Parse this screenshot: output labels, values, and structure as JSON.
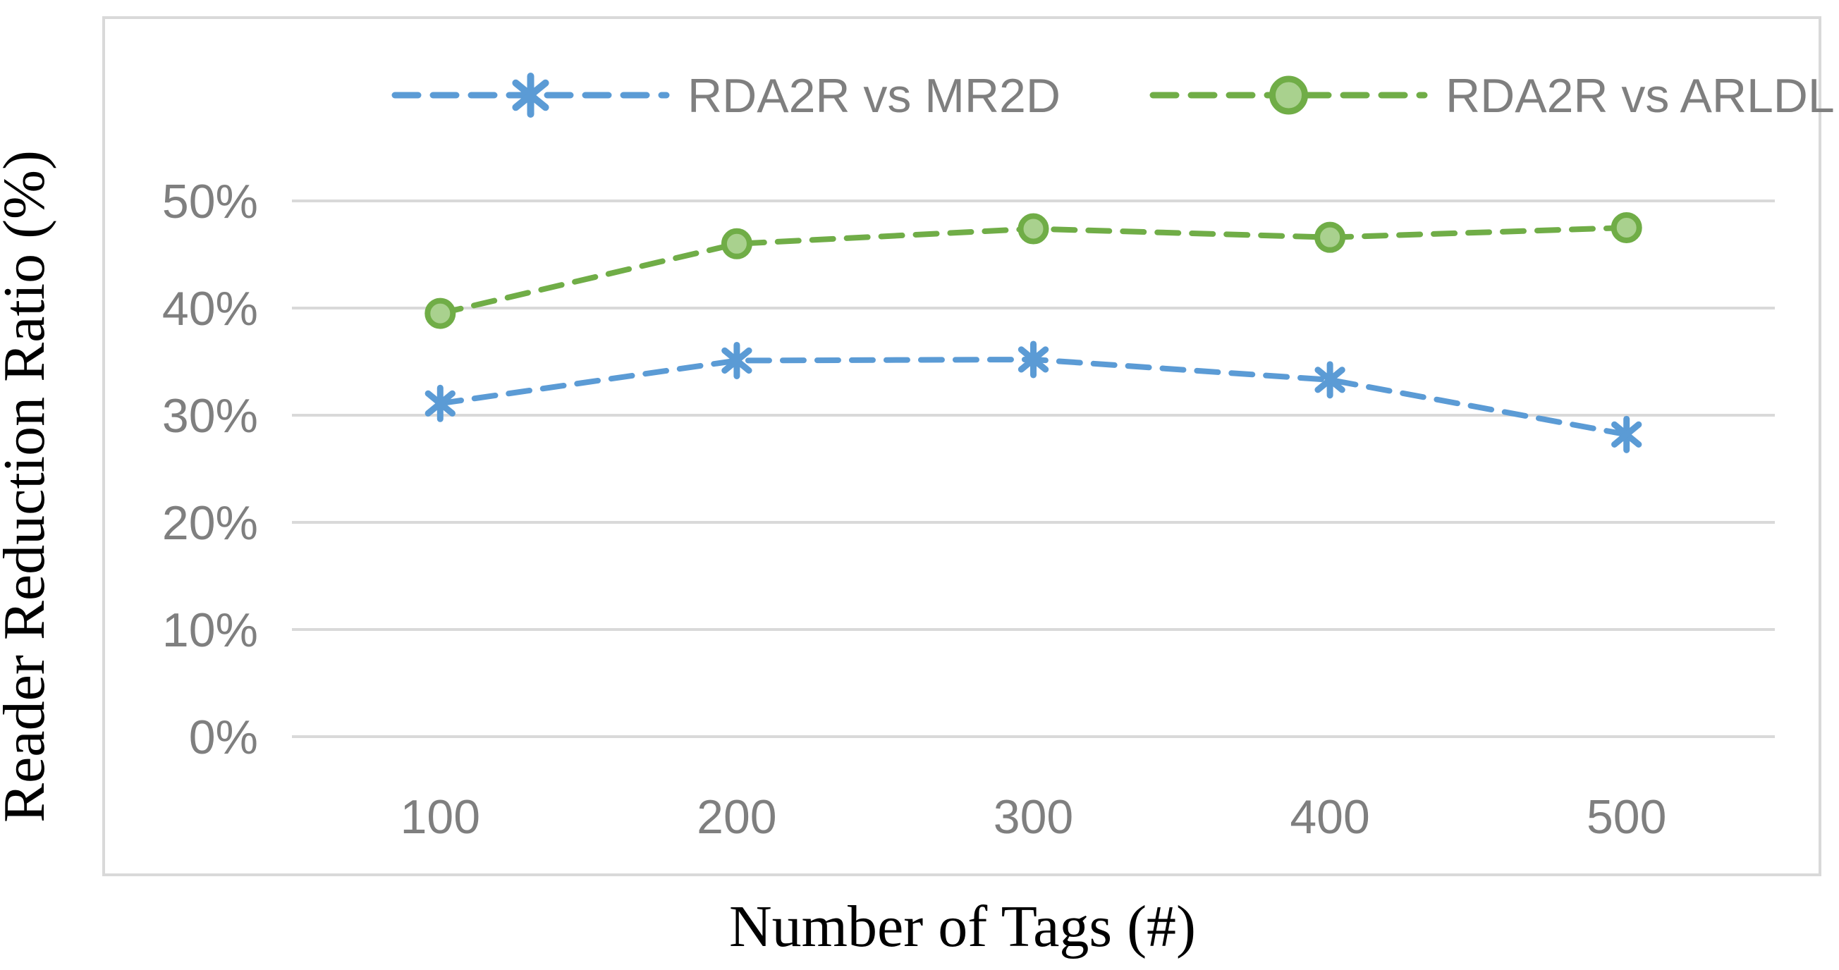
{
  "figure": {
    "y_axis_title": "Reader Reduction Ratio (%)",
    "x_axis_title": "Number of Tags (#)"
  },
  "legend": {
    "position": "top",
    "items": [
      {
        "label": "RDA2R vs MR2D",
        "marker": "asterisk",
        "color": "#5B9BD5"
      },
      {
        "label": "RDA2R vs ARLDL",
        "marker": "circle",
        "color": "#70AD47",
        "marker_fill": "#A9D18E"
      }
    ]
  },
  "axes": {
    "y_tick_labels": [
      "0%",
      "10%",
      "20%",
      "30%",
      "40%",
      "50%"
    ],
    "y_tick_values": [
      0,
      10,
      20,
      30,
      40,
      50
    ],
    "x_tick_labels": [
      "100",
      "200",
      "300",
      "400",
      "500"
    ]
  },
  "colors": {
    "series_blue": "#5B9BD5",
    "series_green": "#70AD47",
    "green_marker_fill": "#A9D18E",
    "gridline": "#D9D9D9",
    "chart_border": "#D9D9D9",
    "tick_text": "#7F7F7F",
    "legend_text": "#7F7F7F",
    "axis_title_text": "#000000",
    "background": "#FFFFFF"
  },
  "chart_data": {
    "type": "line",
    "title": "",
    "xlabel": "Number of Tags (#)",
    "ylabel": "Reader Reduction Ratio (%)",
    "categories": [
      100,
      200,
      300,
      400,
      500
    ],
    "series": [
      {
        "name": "RDA2R vs MR2D",
        "values": [
          31.1,
          35.1,
          35.2,
          33.3,
          28.2
        ],
        "color": "#5B9BD5",
        "marker": "asterisk",
        "line_style": "dashed"
      },
      {
        "name": "RDA2R vs ARLDL",
        "values": [
          39.5,
          46.0,
          47.4,
          46.6,
          47.5
        ],
        "color": "#70AD47",
        "marker": "circle",
        "marker_fill": "#A9D18E",
        "line_style": "dashed"
      }
    ],
    "ylim": [
      0,
      55
    ],
    "y_ticks_percent": [
      0,
      10,
      20,
      30,
      40,
      50
    ],
    "grid": "horizontal",
    "legend_position": "top"
  }
}
